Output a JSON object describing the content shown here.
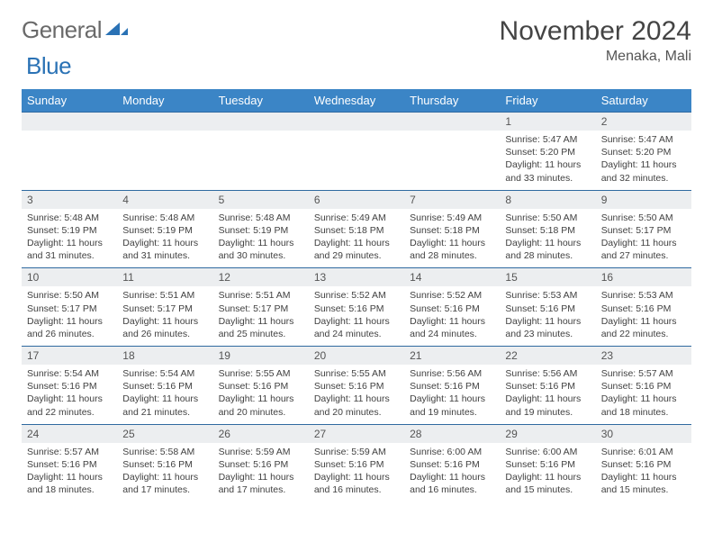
{
  "logo": {
    "general": "General",
    "blue": "Blue"
  },
  "title": "November 2024",
  "location": "Menaka, Mali",
  "colors": {
    "header_bg": "#3b85c6",
    "header_text": "#ffffff",
    "daynum_bg": "#eceef0",
    "cell_border": "#2f6aa0",
    "logo_gray": "#6a6a6a",
    "logo_blue": "#2a72b5",
    "body_text": "#414141",
    "title_text": "#444444"
  },
  "day_headers": [
    "Sunday",
    "Monday",
    "Tuesday",
    "Wednesday",
    "Thursday",
    "Friday",
    "Saturday"
  ],
  "weeks": [
    [
      null,
      null,
      null,
      null,
      null,
      {
        "n": "1",
        "sunrise": "5:47 AM",
        "sunset": "5:20 PM",
        "daylight": "11 hours and 33 minutes."
      },
      {
        "n": "2",
        "sunrise": "5:47 AM",
        "sunset": "5:20 PM",
        "daylight": "11 hours and 32 minutes."
      }
    ],
    [
      {
        "n": "3",
        "sunrise": "5:48 AM",
        "sunset": "5:19 PM",
        "daylight": "11 hours and 31 minutes."
      },
      {
        "n": "4",
        "sunrise": "5:48 AM",
        "sunset": "5:19 PM",
        "daylight": "11 hours and 31 minutes."
      },
      {
        "n": "5",
        "sunrise": "5:48 AM",
        "sunset": "5:19 PM",
        "daylight": "11 hours and 30 minutes."
      },
      {
        "n": "6",
        "sunrise": "5:49 AM",
        "sunset": "5:18 PM",
        "daylight": "11 hours and 29 minutes."
      },
      {
        "n": "7",
        "sunrise": "5:49 AM",
        "sunset": "5:18 PM",
        "daylight": "11 hours and 28 minutes."
      },
      {
        "n": "8",
        "sunrise": "5:50 AM",
        "sunset": "5:18 PM",
        "daylight": "11 hours and 28 minutes."
      },
      {
        "n": "9",
        "sunrise": "5:50 AM",
        "sunset": "5:17 PM",
        "daylight": "11 hours and 27 minutes."
      }
    ],
    [
      {
        "n": "10",
        "sunrise": "5:50 AM",
        "sunset": "5:17 PM",
        "daylight": "11 hours and 26 minutes."
      },
      {
        "n": "11",
        "sunrise": "5:51 AM",
        "sunset": "5:17 PM",
        "daylight": "11 hours and 26 minutes."
      },
      {
        "n": "12",
        "sunrise": "5:51 AM",
        "sunset": "5:17 PM",
        "daylight": "11 hours and 25 minutes."
      },
      {
        "n": "13",
        "sunrise": "5:52 AM",
        "sunset": "5:16 PM",
        "daylight": "11 hours and 24 minutes."
      },
      {
        "n": "14",
        "sunrise": "5:52 AM",
        "sunset": "5:16 PM",
        "daylight": "11 hours and 24 minutes."
      },
      {
        "n": "15",
        "sunrise": "5:53 AM",
        "sunset": "5:16 PM",
        "daylight": "11 hours and 23 minutes."
      },
      {
        "n": "16",
        "sunrise": "5:53 AM",
        "sunset": "5:16 PM",
        "daylight": "11 hours and 22 minutes."
      }
    ],
    [
      {
        "n": "17",
        "sunrise": "5:54 AM",
        "sunset": "5:16 PM",
        "daylight": "11 hours and 22 minutes."
      },
      {
        "n": "18",
        "sunrise": "5:54 AM",
        "sunset": "5:16 PM",
        "daylight": "11 hours and 21 minutes."
      },
      {
        "n": "19",
        "sunrise": "5:55 AM",
        "sunset": "5:16 PM",
        "daylight": "11 hours and 20 minutes."
      },
      {
        "n": "20",
        "sunrise": "5:55 AM",
        "sunset": "5:16 PM",
        "daylight": "11 hours and 20 minutes."
      },
      {
        "n": "21",
        "sunrise": "5:56 AM",
        "sunset": "5:16 PM",
        "daylight": "11 hours and 19 minutes."
      },
      {
        "n": "22",
        "sunrise": "5:56 AM",
        "sunset": "5:16 PM",
        "daylight": "11 hours and 19 minutes."
      },
      {
        "n": "23",
        "sunrise": "5:57 AM",
        "sunset": "5:16 PM",
        "daylight": "11 hours and 18 minutes."
      }
    ],
    [
      {
        "n": "24",
        "sunrise": "5:57 AM",
        "sunset": "5:16 PM",
        "daylight": "11 hours and 18 minutes."
      },
      {
        "n": "25",
        "sunrise": "5:58 AM",
        "sunset": "5:16 PM",
        "daylight": "11 hours and 17 minutes."
      },
      {
        "n": "26",
        "sunrise": "5:59 AM",
        "sunset": "5:16 PM",
        "daylight": "11 hours and 17 minutes."
      },
      {
        "n": "27",
        "sunrise": "5:59 AM",
        "sunset": "5:16 PM",
        "daylight": "11 hours and 16 minutes."
      },
      {
        "n": "28",
        "sunrise": "6:00 AM",
        "sunset": "5:16 PM",
        "daylight": "11 hours and 16 minutes."
      },
      {
        "n": "29",
        "sunrise": "6:00 AM",
        "sunset": "5:16 PM",
        "daylight": "11 hours and 15 minutes."
      },
      {
        "n": "30",
        "sunrise": "6:01 AM",
        "sunset": "5:16 PM",
        "daylight": "11 hours and 15 minutes."
      }
    ]
  ],
  "labels": {
    "sunrise": "Sunrise: ",
    "sunset": "Sunset: ",
    "daylight": "Daylight: "
  }
}
